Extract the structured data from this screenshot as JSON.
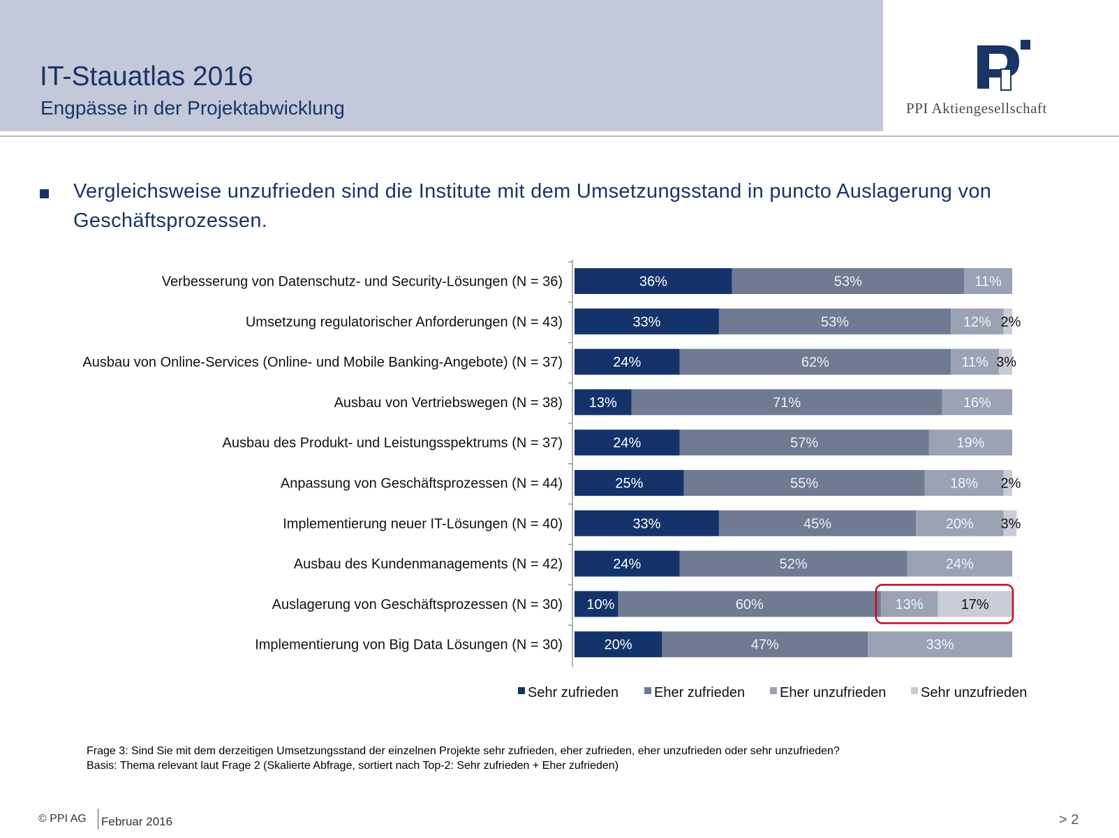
{
  "header": {
    "title": "IT-Stauatlas 2016",
    "subtitle": "Engpässe in der Projektabwicklung",
    "company": "PPI Aktiengesellschaft"
  },
  "headline": "Vergleichsweise unzufrieden sind die Institute mit dem Umsetzungsstand in puncto Auslagerung von Geschäftsprozessen.",
  "chart_data": {
    "type": "bar",
    "orientation": "horizontal",
    "stacked": true,
    "categories": [
      "Verbesserung von Datenschutz- und Security-Lösungen (N = 36)",
      "Umsetzung regulatorischer Anforderungen (N = 43)",
      "Ausbau von Online-Services (Online- und Mobile Banking-Angebote) (N = 37)",
      "Ausbau von Vertriebswegen (N = 38)",
      "Ausbau des Produkt- und Leistungsspektrums (N = 37)",
      "Anpassung von Geschäftsprozessen (N = 44)",
      "Implementierung neuer IT-Lösungen (N = 40)",
      "Ausbau des Kundenmanagements (N = 42)",
      "Auslagerung von Geschäftsprozessen (N = 30)",
      "Implementierung von Big Data Lösungen (N = 30)"
    ],
    "series": [
      {
        "name": "Sehr zufrieden",
        "color": "#14336b",
        "values": [
          36,
          33,
          24,
          13,
          24,
          25,
          33,
          24,
          10,
          20
        ]
      },
      {
        "name": "Eher zufrieden",
        "color": "#6f7b93",
        "values": [
          53,
          53,
          62,
          71,
          57,
          55,
          45,
          52,
          60,
          47
        ]
      },
      {
        "name": "Eher unzufrieden",
        "color": "#9aa2b4",
        "values": [
          11,
          12,
          11,
          16,
          19,
          18,
          20,
          24,
          13,
          33
        ]
      },
      {
        "name": "Sehr unzufrieden",
        "color": "#c9ccd6",
        "values": [
          0,
          2,
          3,
          0,
          0,
          2,
          3,
          0,
          17,
          0
        ]
      }
    ],
    "labels": [
      [
        "36%",
        "53%",
        "11%",
        ""
      ],
      [
        "33%",
        "53%",
        "12%",
        "2%"
      ],
      [
        "24%",
        "62%",
        "11%",
        "3%"
      ],
      [
        "13%",
        "71%",
        "16%",
        ""
      ],
      [
        "24%",
        "57%",
        "19%",
        ""
      ],
      [
        "25%",
        "55%",
        "18%",
        "2%"
      ],
      [
        "33%",
        "45%",
        "20%",
        "3%"
      ],
      [
        "24%",
        "52%",
        "24%",
        ""
      ],
      [
        "10%",
        "60%",
        "13%",
        "17%"
      ],
      [
        "20%",
        "47%",
        "33%",
        ""
      ]
    ],
    "highlight": {
      "category_index": 8,
      "series": [
        "Eher unzufrieden",
        "Sehr unzufrieden"
      ],
      "color": "#d0021b"
    },
    "legend_position": "bottom",
    "xlim": [
      0,
      100
    ]
  },
  "footnote": {
    "question": "Frage 3: Sind Sie mit dem derzeitigen Umsetzungsstand der einzelnen Projekte sehr zufrieden, eher zufrieden, eher unzufrieden oder sehr unzufrieden?",
    "basis": "Basis: Thema relevant laut Frage 2 (Skalierte Abfrage, sortiert nach Top-2: Sehr zufrieden + Eher zufrieden)"
  },
  "footer": {
    "copyright": "© PPI AG",
    "date": "Februar 2016",
    "page": "> 2"
  }
}
